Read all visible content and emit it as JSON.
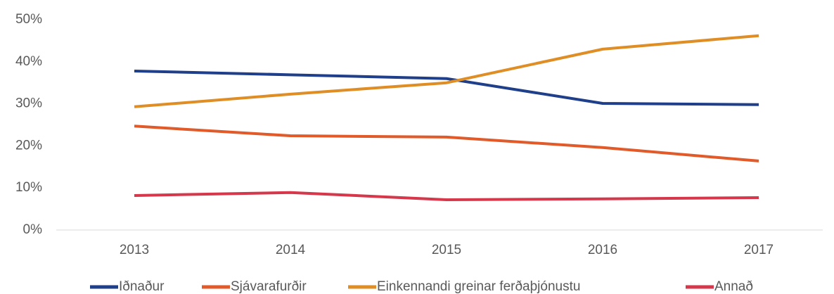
{
  "chart_data": {
    "type": "line",
    "categories": [
      "2013",
      "2014",
      "2015",
      "2016",
      "2017"
    ],
    "series": [
      {
        "name": "Iðnaður",
        "color": "#203f8a",
        "values": [
          37.8,
          36.9,
          36.0,
          30.1,
          29.8
        ]
      },
      {
        "name": "Sjávarafurðir",
        "color": "#e05a2a",
        "values": [
          24.7,
          22.4,
          22.1,
          19.6,
          16.4
        ]
      },
      {
        "name": "Einkennandi greinar ferðaþjónustu",
        "color": "#df8e25",
        "values": [
          29.3,
          32.3,
          35.0,
          43.0,
          46.2
        ]
      },
      {
        "name": "Annað",
        "color": "#d5374b",
        "values": [
          8.2,
          8.9,
          7.2,
          7.4,
          7.7
        ]
      }
    ],
    "ylim": [
      0,
      50
    ],
    "yticks": [
      {
        "value": 0,
        "label": "0%"
      },
      {
        "value": 10,
        "label": "10%"
      },
      {
        "value": 20,
        "label": "20%"
      },
      {
        "value": 30,
        "label": "30%"
      },
      {
        "value": 40,
        "label": "40%"
      },
      {
        "value": 50,
        "label": "50%"
      }
    ],
    "grid": false,
    "legend": "bottom"
  }
}
